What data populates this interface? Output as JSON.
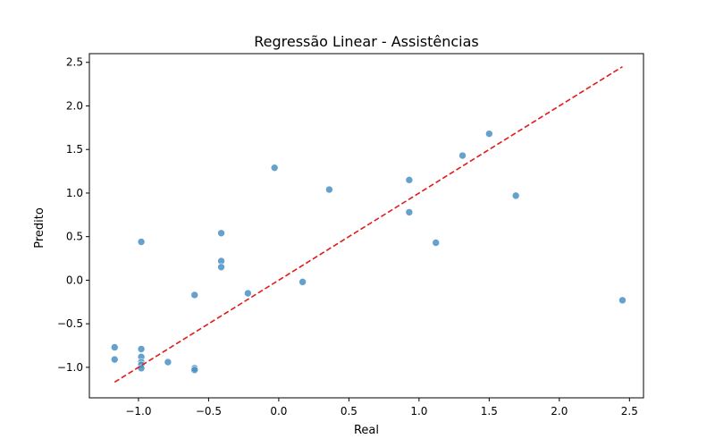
{
  "chart_data": {
    "type": "scatter",
    "title": "Regressão Linear - Assistências",
    "xlabel": "Real",
    "ylabel": "Predito",
    "xlim": [
      -1.35,
      2.6
    ],
    "ylim": [
      -1.35,
      2.6
    ],
    "xticks": [
      -1.0,
      -0.5,
      0.0,
      0.5,
      1.0,
      1.5,
      2.0,
      2.5
    ],
    "yticks": [
      -1.0,
      -0.5,
      0.0,
      0.5,
      1.0,
      1.5,
      2.0,
      2.5
    ],
    "xtick_labels": [
      "−1.0",
      "−0.5",
      "0.0",
      "0.5",
      "1.0",
      "1.5",
      "2.0",
      "2.5"
    ],
    "ytick_labels": [
      "−1.0",
      "−0.5",
      "0.0",
      "0.5",
      "1.0",
      "1.5",
      "2.0",
      "2.5"
    ],
    "grid": false,
    "point_color": "#4a90c4",
    "line_color": "#e31a1c",
    "points": [
      {
        "x": -1.17,
        "y": -0.77
      },
      {
        "x": -1.17,
        "y": -0.91
      },
      {
        "x": -0.98,
        "y": 0.44
      },
      {
        "x": -0.98,
        "y": -0.79
      },
      {
        "x": -0.98,
        "y": -0.88
      },
      {
        "x": -0.98,
        "y": -0.94
      },
      {
        "x": -0.98,
        "y": -0.97
      },
      {
        "x": -0.98,
        "y": -1.01
      },
      {
        "x": -0.79,
        "y": -0.94
      },
      {
        "x": -0.6,
        "y": -0.17
      },
      {
        "x": -0.6,
        "y": -1.01
      },
      {
        "x": -0.6,
        "y": -1.03
      },
      {
        "x": -0.41,
        "y": 0.54
      },
      {
        "x": -0.41,
        "y": 0.22
      },
      {
        "x": -0.41,
        "y": 0.15
      },
      {
        "x": -0.22,
        "y": -0.15
      },
      {
        "x": -0.03,
        "y": 1.29
      },
      {
        "x": 0.17,
        "y": -0.02
      },
      {
        "x": 0.36,
        "y": 1.04
      },
      {
        "x": 0.93,
        "y": 1.15
      },
      {
        "x": 0.93,
        "y": 0.78
      },
      {
        "x": 1.12,
        "y": 0.43
      },
      {
        "x": 1.31,
        "y": 1.43
      },
      {
        "x": 1.5,
        "y": 1.68
      },
      {
        "x": 1.69,
        "y": 0.97
      },
      {
        "x": 2.45,
        "y": -0.23
      }
    ],
    "reference_line": {
      "x": [
        -1.17,
        2.45
      ],
      "y": [
        -1.17,
        2.45
      ],
      "style": "dashed"
    }
  }
}
